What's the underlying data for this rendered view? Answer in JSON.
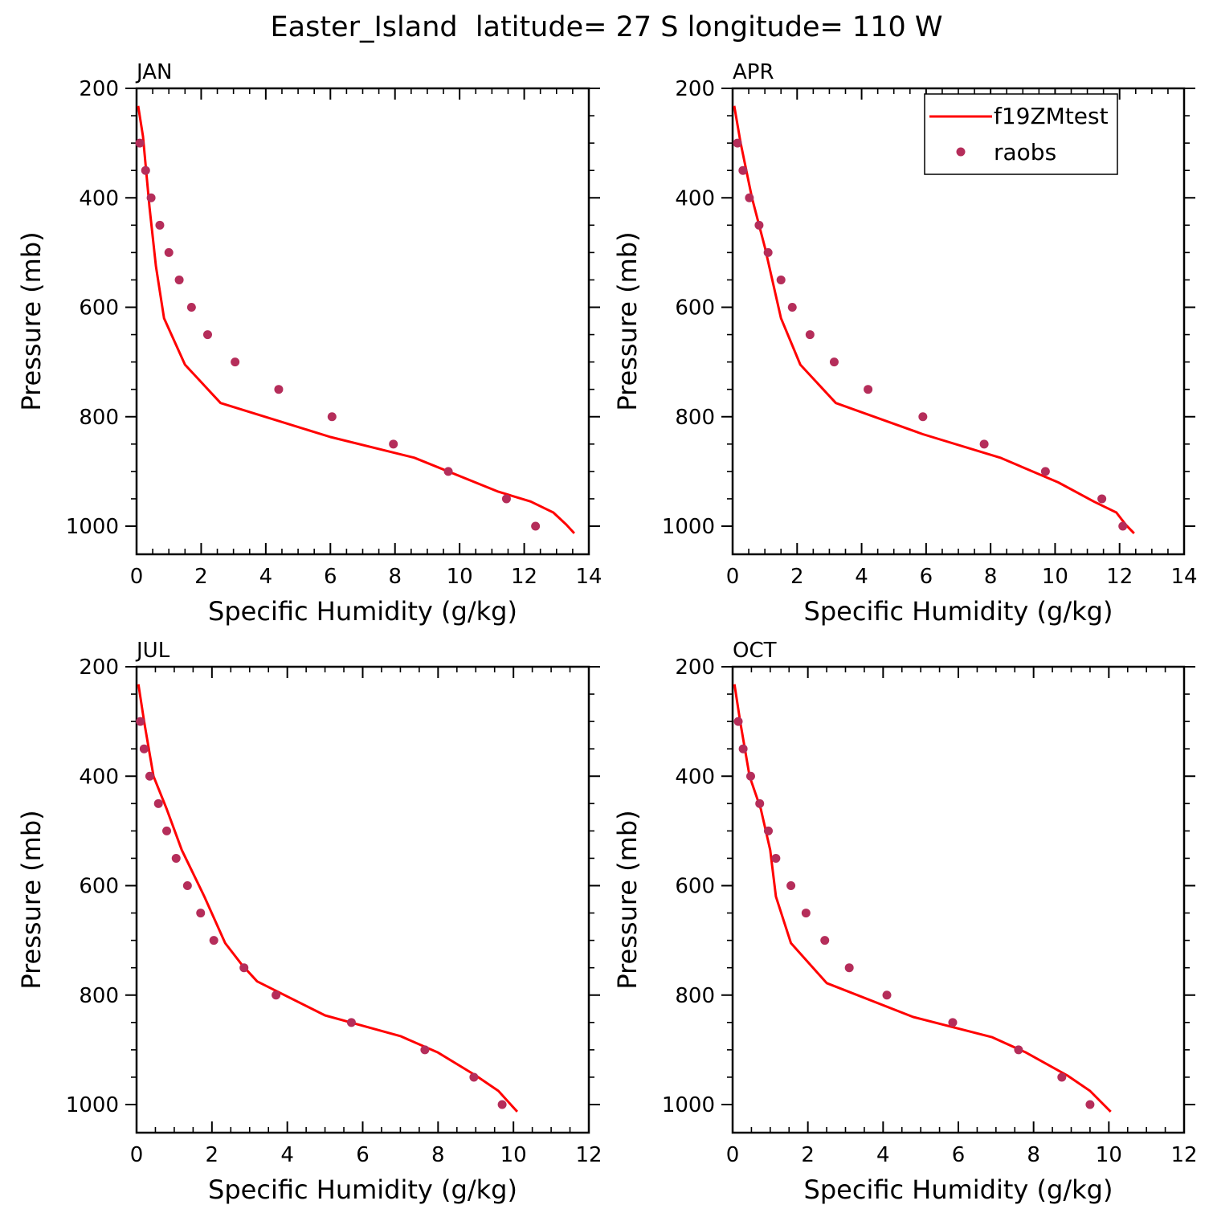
{
  "title": "Easter_Island  latitude= 27 S longitude= 110 W",
  "legend": {
    "model_label": "f19ZMtest",
    "obs_label": "raobs",
    "model_color": "#ff0000",
    "obs_color": "#b52d5a",
    "placement": "top-right of APR panel"
  },
  "chart_data": [
    {
      "type": "line",
      "panel_label": "JAN",
      "xlabel": "Specific Humidity (g/kg)",
      "ylabel": "Pressure (mb)",
      "xlim": [
        0,
        14
      ],
      "ylim": [
        1000,
        200
      ],
      "y_inverted": true,
      "xticks": [
        "0",
        "2",
        "4",
        "6",
        "8",
        "10",
        "12",
        "14"
      ],
      "yticks": [
        "200",
        "400",
        "600",
        "800",
        "1000"
      ],
      "series": [
        {
          "name": "f19ZMtest",
          "x": [
            0.05,
            0.2,
            0.4,
            0.6,
            0.85,
            1.5,
            2.6,
            6.0,
            8.6,
            11.2,
            12.2,
            12.9,
            13.3,
            13.55
          ],
          "y": [
            232,
            288,
            417,
            525,
            620,
            705,
            775,
            837,
            875,
            937,
            955,
            975,
            997,
            1013
          ]
        },
        {
          "name": "raobs",
          "x": [
            0.1,
            0.28,
            0.45,
            0.72,
            1.0,
            1.32,
            1.7,
            2.2,
            3.05,
            4.4,
            6.05,
            7.95,
            9.65,
            11.45,
            12.35
          ],
          "y": [
            300,
            350,
            400,
            450,
            500,
            550,
            600,
            650,
            700,
            750,
            800,
            850,
            900,
            950,
            1000
          ]
        }
      ]
    },
    {
      "type": "line",
      "panel_label": "APR",
      "xlabel": "Specific Humidity (g/kg)",
      "ylabel": "Pressure (mb)",
      "xlim": [
        0,
        14
      ],
      "ylim": [
        1000,
        200
      ],
      "y_inverted": true,
      "xticks": [
        "0",
        "2",
        "4",
        "6",
        "8",
        "10",
        "12",
        "14"
      ],
      "yticks": [
        "200",
        "400",
        "600",
        "800",
        "1000"
      ],
      "series": [
        {
          "name": "f19ZMtest",
          "x": [
            0.05,
            0.25,
            0.6,
            1.0,
            1.5,
            2.1,
            3.2,
            5.9,
            8.3,
            10.1,
            11.2,
            11.9,
            12.2,
            12.45
          ],
          "y": [
            232,
            300,
            400,
            490,
            620,
            705,
            775,
            832,
            875,
            920,
            955,
            975,
            998,
            1013
          ]
        },
        {
          "name": "raobs",
          "x": [
            0.15,
            0.32,
            0.52,
            0.82,
            1.1,
            1.5,
            1.85,
            2.4,
            3.15,
            4.2,
            5.9,
            7.8,
            9.7,
            11.45,
            12.1
          ],
          "y": [
            300,
            350,
            400,
            450,
            500,
            550,
            600,
            650,
            700,
            750,
            800,
            850,
            900,
            950,
            1000
          ]
        }
      ]
    },
    {
      "type": "line",
      "panel_label": "JUL",
      "xlabel": "Specific Humidity (g/kg)",
      "ylabel": "Pressure (mb)",
      "xlim": [
        0,
        12
      ],
      "ylim": [
        1000,
        200
      ],
      "y_inverted": true,
      "xticks": [
        "0",
        "2",
        "4",
        "6",
        "8",
        "10",
        "12"
      ],
      "yticks": [
        "200",
        "400",
        "600",
        "800",
        "1000"
      ],
      "series": [
        {
          "name": "f19ZMtest",
          "x": [
            0.05,
            0.2,
            0.45,
            0.8,
            1.2,
            1.8,
            2.35,
            2.8,
            3.2,
            5.0,
            7.0,
            8.0,
            9.0,
            9.6,
            10.1
          ],
          "y": [
            232,
            300,
            400,
            460,
            535,
            620,
            705,
            745,
            775,
            837,
            875,
            905,
            947,
            975,
            1013
          ]
        },
        {
          "name": "raobs",
          "x": [
            0.1,
            0.2,
            0.35,
            0.58,
            0.8,
            1.05,
            1.35,
            1.7,
            2.05,
            2.85,
            3.7,
            5.7,
            7.65,
            8.95,
            9.7
          ],
          "y": [
            300,
            350,
            400,
            450,
            500,
            550,
            600,
            650,
            700,
            750,
            800,
            850,
            900,
            950,
            1000
          ]
        }
      ]
    },
    {
      "type": "line",
      "panel_label": "OCT",
      "xlabel": "Specific Humidity (g/kg)",
      "ylabel": "Pressure (mb)",
      "xlim": [
        0,
        12
      ],
      "ylim": [
        1000,
        200
      ],
      "y_inverted": true,
      "xticks": [
        "0",
        "2",
        "4",
        "6",
        "8",
        "10",
        "12"
      ],
      "yticks": [
        "200",
        "400",
        "600",
        "800",
        "1000"
      ],
      "series": [
        {
          "name": "f19ZMtest",
          "x": [
            0.05,
            0.2,
            0.45,
            0.75,
            1.0,
            1.15,
            1.55,
            2.5,
            4.8,
            6.9,
            7.8,
            8.9,
            9.5,
            10.05
          ],
          "y": [
            232,
            300,
            400,
            460,
            535,
            620,
            705,
            778,
            840,
            877,
            905,
            947,
            975,
            1013
          ]
        },
        {
          "name": "raobs",
          "x": [
            0.15,
            0.28,
            0.48,
            0.72,
            0.95,
            1.15,
            1.55,
            1.95,
            2.45,
            3.1,
            4.1,
            5.85,
            7.6,
            8.75,
            9.5
          ],
          "y": [
            300,
            350,
            400,
            450,
            500,
            550,
            600,
            650,
            700,
            750,
            800,
            850,
            900,
            950,
            1000
          ]
        }
      ]
    }
  ]
}
